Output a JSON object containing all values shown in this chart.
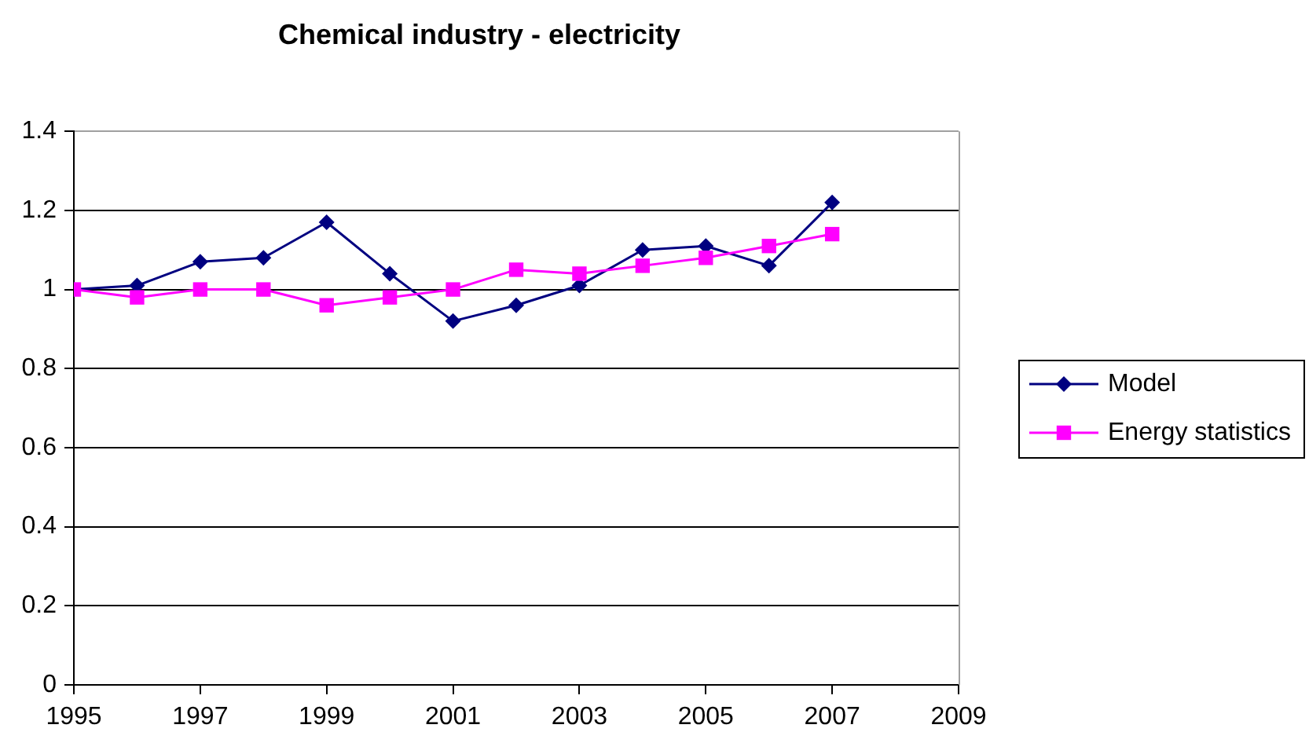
{
  "chart_data": {
    "type": "line",
    "title": "Chemical industry - electricity",
    "x": [
      1995,
      1996,
      1997,
      1998,
      1999,
      2000,
      2001,
      2002,
      2003,
      2004,
      2005,
      2006,
      2007
    ],
    "series": [
      {
        "name": "Model",
        "color": "#000080",
        "marker": "diamond",
        "values": [
          1.0,
          1.01,
          1.07,
          1.08,
          1.17,
          1.04,
          0.92,
          0.96,
          1.01,
          1.1,
          1.11,
          1.06,
          1.22
        ]
      },
      {
        "name": "Energy statistics",
        "color": "#ff00ff",
        "marker": "square",
        "values": [
          1.0,
          0.98,
          1.0,
          1.0,
          0.96,
          0.98,
          1.0,
          1.05,
          1.04,
          1.06,
          1.08,
          1.11,
          1.14
        ]
      }
    ],
    "xlim": [
      1995,
      2009
    ],
    "xticks": [
      1995,
      1997,
      1999,
      2001,
      2003,
      2005,
      2007,
      2009
    ],
    "ylim": [
      0,
      1.4
    ],
    "yticks": [
      0,
      0.2,
      0.4,
      0.6,
      0.8,
      1,
      1.2,
      1.4
    ],
    "grid": "y",
    "legend": "right",
    "line_style": "solid"
  }
}
